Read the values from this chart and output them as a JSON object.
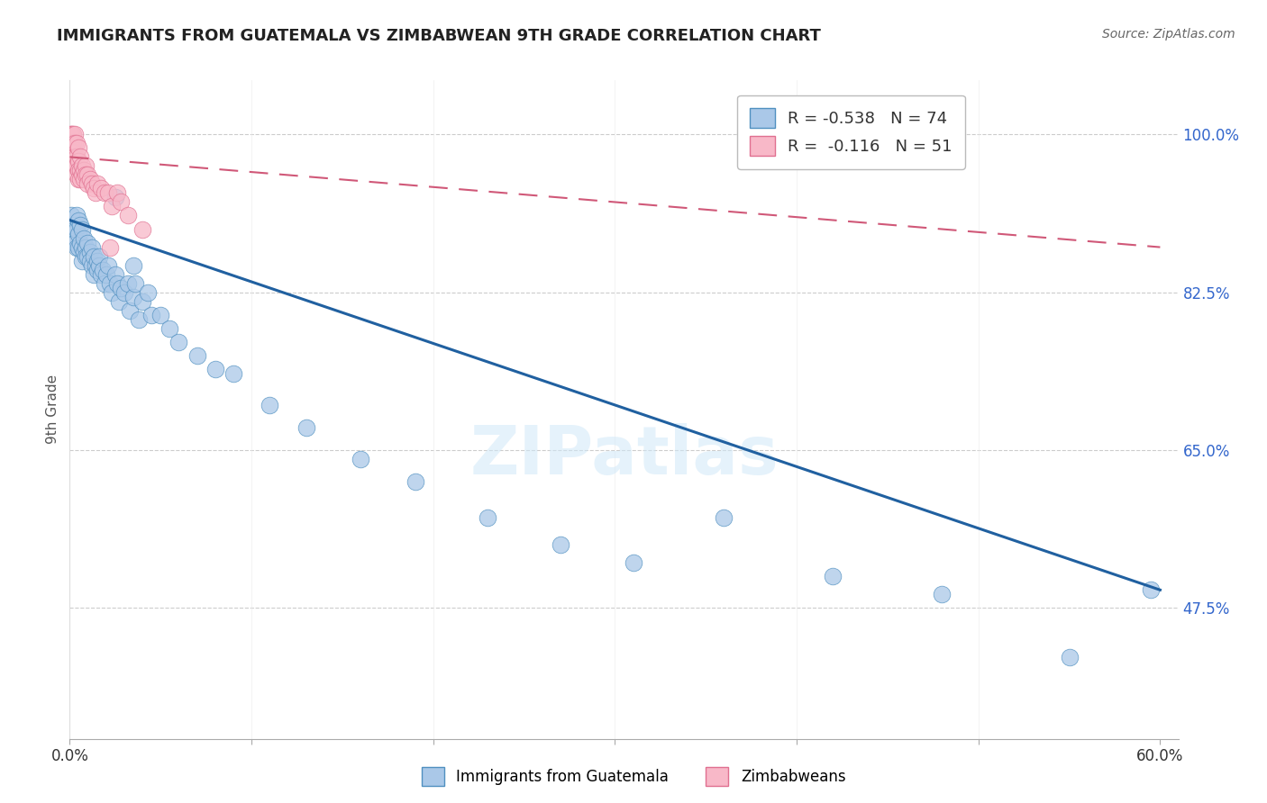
{
  "title": "IMMIGRANTS FROM GUATEMALA VS ZIMBABWEAN 9TH GRADE CORRELATION CHART",
  "source": "Source: ZipAtlas.com",
  "ylabel": "9th Grade",
  "xlim": [
    0.0,
    0.61
  ],
  "ylim": [
    0.33,
    1.06
  ],
  "blue_R": -0.538,
  "blue_N": 74,
  "pink_R": -0.116,
  "pink_N": 51,
  "blue_color": "#aac8e8",
  "blue_edge_color": "#5090c0",
  "blue_line_color": "#2060a0",
  "pink_color": "#f8b8c8",
  "pink_edge_color": "#e07090",
  "pink_line_color": "#d05878",
  "background_color": "#ffffff",
  "grid_color": "#cccccc",
  "watermark": "ZIPatlas",
  "legend_label_blue": "Immigrants from Guatemala",
  "legend_label_pink": "Zimbabweans",
  "blue_line_x0": 0.0,
  "blue_line_y0": 0.905,
  "blue_line_x1": 0.6,
  "blue_line_y1": 0.495,
  "pink_line_x0": 0.0,
  "pink_line_y0": 0.975,
  "pink_line_x1": 0.6,
  "pink_line_y1": 0.875,
  "blue_scatter_x": [
    0.001,
    0.001,
    0.002,
    0.002,
    0.003,
    0.003,
    0.004,
    0.004,
    0.004,
    0.005,
    0.005,
    0.005,
    0.006,
    0.006,
    0.007,
    0.007,
    0.007,
    0.008,
    0.008,
    0.009,
    0.009,
    0.01,
    0.01,
    0.011,
    0.011,
    0.012,
    0.012,
    0.013,
    0.013,
    0.014,
    0.015,
    0.015,
    0.016,
    0.016,
    0.017,
    0.018,
    0.019,
    0.02,
    0.021,
    0.022,
    0.023,
    0.025,
    0.026,
    0.027,
    0.028,
    0.03,
    0.032,
    0.033,
    0.035,
    0.036,
    0.038,
    0.04,
    0.043,
    0.045,
    0.05,
    0.055,
    0.06,
    0.07,
    0.08,
    0.09,
    0.11,
    0.13,
    0.16,
    0.19,
    0.23,
    0.27,
    0.31,
    0.36,
    0.42,
    0.48,
    0.55,
    0.595,
    0.025,
    0.035
  ],
  "blue_scatter_y": [
    0.91,
    0.895,
    0.9,
    0.885,
    0.895,
    0.88,
    0.895,
    0.875,
    0.91,
    0.89,
    0.875,
    0.905,
    0.88,
    0.9,
    0.875,
    0.895,
    0.86,
    0.87,
    0.885,
    0.875,
    0.865,
    0.865,
    0.88,
    0.87,
    0.86,
    0.875,
    0.855,
    0.865,
    0.845,
    0.855,
    0.86,
    0.85,
    0.855,
    0.865,
    0.845,
    0.85,
    0.835,
    0.845,
    0.855,
    0.835,
    0.825,
    0.845,
    0.835,
    0.815,
    0.83,
    0.825,
    0.835,
    0.805,
    0.82,
    0.835,
    0.795,
    0.815,
    0.825,
    0.8,
    0.8,
    0.785,
    0.77,
    0.755,
    0.74,
    0.735,
    0.7,
    0.675,
    0.64,
    0.615,
    0.575,
    0.545,
    0.525,
    0.575,
    0.51,
    0.49,
    0.42,
    0.495,
    0.93,
    0.855
  ],
  "pink_scatter_x": [
    0.0005,
    0.0005,
    0.001,
    0.001,
    0.001,
    0.001,
    0.001,
    0.0015,
    0.0015,
    0.002,
    0.002,
    0.002,
    0.002,
    0.002,
    0.003,
    0.003,
    0.003,
    0.003,
    0.004,
    0.004,
    0.004,
    0.004,
    0.005,
    0.005,
    0.005,
    0.005,
    0.006,
    0.006,
    0.006,
    0.007,
    0.007,
    0.008,
    0.008,
    0.009,
    0.009,
    0.01,
    0.01,
    0.011,
    0.012,
    0.013,
    0.014,
    0.015,
    0.017,
    0.019,
    0.021,
    0.023,
    0.026,
    0.028,
    0.032,
    0.04,
    0.022
  ],
  "pink_scatter_y": [
    1.0,
    0.99,
    1.0,
    0.99,
    0.98,
    0.975,
    0.97,
    1.0,
    0.985,
    1.0,
    0.99,
    0.98,
    0.975,
    0.965,
    1.0,
    0.99,
    0.975,
    0.965,
    0.99,
    0.975,
    0.965,
    0.955,
    0.985,
    0.97,
    0.96,
    0.95,
    0.975,
    0.96,
    0.95,
    0.965,
    0.955,
    0.96,
    0.95,
    0.965,
    0.955,
    0.955,
    0.945,
    0.95,
    0.945,
    0.94,
    0.935,
    0.945,
    0.94,
    0.935,
    0.935,
    0.92,
    0.935,
    0.925,
    0.91,
    0.895,
    0.875
  ]
}
